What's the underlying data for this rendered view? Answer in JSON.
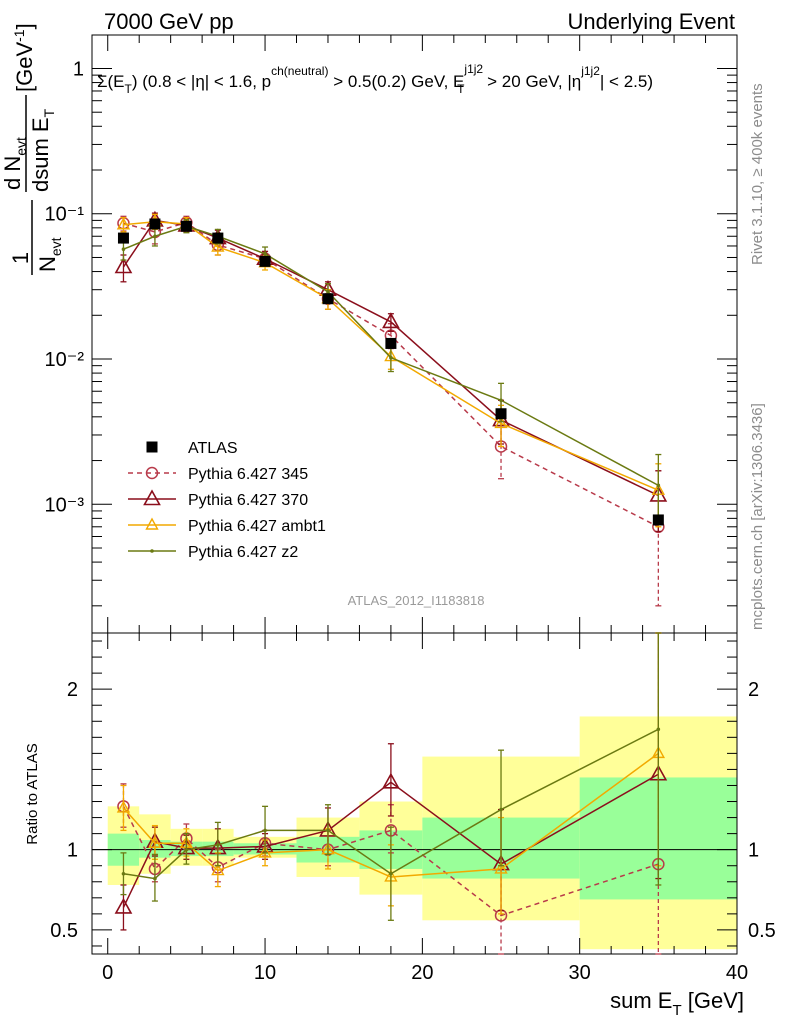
{
  "header": {
    "left": "7000 GeV pp",
    "right": "Underlying Event"
  },
  "side_labels": {
    "rivet": "Rivet 3.1.10, ≥ 400k events",
    "mcplots": "mcplots.cern.ch [arXiv:1306.3436]"
  },
  "watermark": "ATLAS_2012_I1183818",
  "main_title": {
    "a": "Σ(E",
    "a_sub": "T",
    "b": ") (0.8 < |η| < 1.6, p",
    "b_sup": "ch(neutral)",
    "c": " > 0.5(0.2) GeV, E",
    "c_sup": "j1j2",
    "c_sub": "T",
    "d": " > 20 GeV, |η",
    "d_sup": "j1j2",
    "e": "| < 2.5)"
  },
  "ylabel": {
    "frac1_num": "1",
    "frac1_den": "N",
    "frac1_den_sub": "evt",
    "frac2_num": "d N",
    "frac2_num_sub": "evt",
    "frac2_den": "dsum E",
    "frac2_den_sub": "T",
    "unit": "[GeV",
    "unit_sup": "-1",
    "unit_end": "]"
  },
  "xlabel": {
    "a": "sum E",
    "a_sub": "T",
    "b": " [GeV]"
  },
  "ratio_ylabel": "Ratio to ATLAS",
  "legend": [
    {
      "name": "ATLAS",
      "color": "#000000",
      "marker": "square",
      "dash": "none"
    },
    {
      "name": "Pythia 6.427 345",
      "color": "#b83a4a",
      "marker": "circle",
      "dash": "dashed"
    },
    {
      "name": "Pythia 6.427 370",
      "color": "#8b0f1c",
      "marker": "triangle",
      "dash": "solid"
    },
    {
      "name": "Pythia 6.427 ambt1",
      "color": "#f2a900",
      "marker": "triangle-small",
      "dash": "solid"
    },
    {
      "name": "Pythia 6.427 z2",
      "color": "#6b7a12",
      "marker": "dot",
      "dash": "solid"
    }
  ],
  "chart_data": {
    "type": "line",
    "main": {
      "yscale": "log",
      "ylim": [
        0.00013,
        1.7
      ],
      "xlim": [
        -1,
        40
      ],
      "ytick_labels": [
        "1",
        "10⁻¹",
        "10⁻²",
        "10⁻³"
      ],
      "xtick_labels": [
        "0",
        "10",
        "20",
        "30",
        "40"
      ],
      "x": [
        1,
        3,
        5,
        7,
        10,
        14,
        18,
        25,
        35
      ],
      "atlas": {
        "values": [
          0.068,
          0.085,
          0.082,
          0.068,
          0.047,
          0.026,
          0.0128,
          0.0042,
          0.00078
        ]
      },
      "series": [
        {
          "name": "Pythia 6.427 345",
          "values": [
            0.086,
            0.075,
            0.087,
            0.061,
            0.049,
            0.026,
            0.0145,
            0.0025,
            0.0007
          ],
          "err_lo": [
            0.076,
            0.062,
            0.078,
            0.052,
            0.044,
            0.022,
            0.0118,
            0.0015,
            0.0002
          ],
          "err_hi": [
            0.096,
            0.088,
            0.096,
            0.072,
            0.055,
            0.03,
            0.0175,
            0.004,
            0.0017
          ]
        },
        {
          "name": "Pythia 6.427 370",
          "values": [
            0.043,
            0.09,
            0.083,
            0.068,
            0.049,
            0.03,
            0.018,
            0.0038,
            0.00115
          ],
          "err_lo": [
            0.034,
            0.079,
            0.075,
            0.06,
            0.044,
            0.026,
            0.0155,
            0.0026,
            0.00065
          ],
          "err_hi": [
            0.052,
            0.101,
            0.093,
            0.077,
            0.055,
            0.034,
            0.0205,
            0.0052,
            0.0017
          ]
        },
        {
          "name": "Pythia 6.427 ambt1",
          "values": [
            0.084,
            0.088,
            0.085,
            0.059,
            0.046,
            0.026,
            0.0104,
            0.0036,
            0.00125
          ],
          "err_lo": [
            0.075,
            0.078,
            0.077,
            0.052,
            0.041,
            0.022,
            0.0085,
            0.0025,
            0.0007
          ],
          "err_hi": [
            0.094,
            0.099,
            0.094,
            0.067,
            0.051,
            0.03,
            0.0125,
            0.0048,
            0.0019
          ]
        },
        {
          "name": "Pythia 6.427 z2",
          "values": [
            0.057,
            0.07,
            0.082,
            0.07,
            0.053,
            0.029,
            0.0102,
            0.0052,
            0.00135
          ],
          "err_lo": [
            0.048,
            0.06,
            0.074,
            0.062,
            0.047,
            0.025,
            0.0082,
            0.0037,
            0.0008
          ],
          "err_hi": [
            0.066,
            0.08,
            0.091,
            0.078,
            0.059,
            0.033,
            0.0123,
            0.0068,
            0.0022
          ]
        }
      ]
    },
    "ratio": {
      "ylim": [
        0.35,
        2.35
      ],
      "ytick_labels": [
        "0.5",
        "1",
        "2"
      ],
      "bands": {
        "bin_edges": [
          0,
          2,
          4,
          6,
          8,
          12,
          16,
          20,
          30,
          40
        ],
        "stat_lo": [
          0.9,
          0.95,
          0.96,
          0.96,
          0.97,
          0.92,
          0.88,
          0.82,
          0.69
        ],
        "stat_hi": [
          1.1,
          1.06,
          1.05,
          1.05,
          1.04,
          1.08,
          1.12,
          1.2,
          1.45
        ],
        "tot_lo": [
          0.78,
          0.85,
          0.9,
          0.9,
          0.95,
          0.83,
          0.72,
          0.56,
          0.38
        ],
        "tot_hi": [
          1.27,
          1.22,
          1.13,
          1.13,
          1.08,
          1.2,
          1.3,
          1.58,
          1.83
        ]
      },
      "series": [
        {
          "name": "Pythia 6.427 345",
          "values": [
            1.27,
            0.88,
            1.07,
            0.89,
            1.04,
            1.0,
            1.12,
            0.59,
            0.91
          ],
          "err_lo": [
            1.14,
            0.8,
            1.0,
            0.8,
            0.96,
            0.9,
            0.98,
            0.35,
            0.3
          ],
          "err_hi": [
            1.41,
            0.97,
            1.16,
            1.0,
            1.12,
            1.12,
            1.28,
            0.92,
            2.35
          ]
        },
        {
          "name": "Pythia 6.427 370",
          "values": [
            0.64,
            1.05,
            1.01,
            1.01,
            1.02,
            1.12,
            1.42,
            0.91,
            1.47
          ],
          "err_lo": [
            0.5,
            0.96,
            0.94,
            0.9,
            0.94,
            1.0,
            1.21,
            0.62,
            0.82
          ],
          "err_hi": [
            0.78,
            1.14,
            1.09,
            1.13,
            1.1,
            1.26,
            1.66,
            1.25,
            2.35
          ]
        },
        {
          "name": "Pythia 6.427 ambt1",
          "values": [
            1.26,
            1.04,
            1.04,
            0.87,
            0.98,
            1.0,
            0.83,
            0.88,
            1.6
          ],
          "err_lo": [
            1.12,
            0.94,
            0.96,
            0.77,
            0.9,
            0.88,
            0.65,
            0.6,
            0.9
          ],
          "err_hi": [
            1.4,
            1.15,
            1.13,
            0.98,
            1.06,
            1.13,
            1.03,
            1.2,
            2.35
          ]
        },
        {
          "name": "Pythia 6.427 z2",
          "values": [
            0.85,
            0.82,
            1.0,
            1.03,
            1.12,
            1.12,
            0.85,
            1.25,
            1.75
          ],
          "err_lo": [
            0.72,
            0.68,
            0.91,
            0.9,
            0.98,
            0.97,
            0.56,
            0.9,
            0.78
          ],
          "err_hi": [
            0.98,
            0.97,
            1.1,
            1.17,
            1.27,
            1.28,
            1.14,
            1.62,
            2.35
          ]
        }
      ]
    }
  }
}
